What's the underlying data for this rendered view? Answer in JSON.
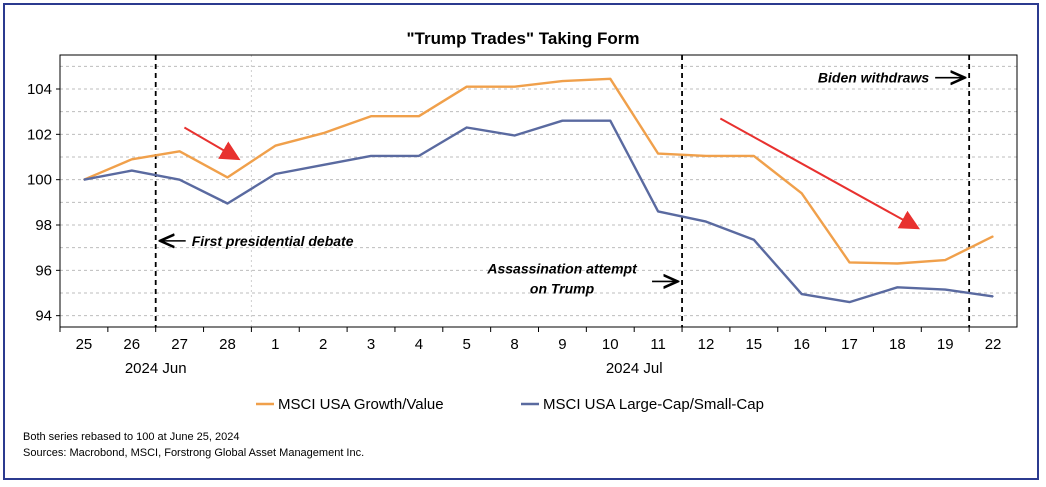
{
  "chart_data": {
    "type": "line",
    "title": "\"Trump Trades\" Taking Form",
    "xlabel": "",
    "ylabel": "",
    "ylim": [
      93.5,
      105.5
    ],
    "yticks": [
      94,
      96,
      98,
      100,
      102,
      104
    ],
    "grid": true,
    "legend_placement": "bottom",
    "categories": [
      "25",
      "26",
      "27",
      "28",
      "1",
      "2",
      "3",
      "4",
      "5",
      "8",
      "9",
      "10",
      "11",
      "12",
      "15",
      "16",
      "17",
      "18",
      "19",
      "22"
    ],
    "month_labels": [
      {
        "text": "2024 Jun",
        "at_index": 1.5
      },
      {
        "text": "2024 Jul",
        "at_index": 11.5
      }
    ],
    "series": [
      {
        "name": "MSCI USA Growth/Value",
        "color": "#f0a04b",
        "values": [
          100.0,
          100.9,
          101.25,
          100.1,
          101.5,
          102.05,
          102.8,
          102.8,
          104.1,
          104.1,
          104.35,
          104.45,
          101.15,
          101.05,
          101.05,
          99.4,
          96.35,
          96.3,
          96.45,
          97.5
        ]
      },
      {
        "name": "MSCI USA Large-Cap/Small-Cap",
        "color": "#5a6aa0",
        "values": [
          100.0,
          100.4,
          100.0,
          98.95,
          100.25,
          100.65,
          101.05,
          101.05,
          102.3,
          101.95,
          102.6,
          102.6,
          98.6,
          98.15,
          97.35,
          94.95,
          94.6,
          95.25,
          95.15,
          94.85
        ]
      }
    ],
    "annotations": [
      {
        "text": "First presidential debate",
        "arrow": "left",
        "at_index": 1.5,
        "y": 97.3
      },
      {
        "text": "Assassination attempt",
        "text2": "on Trump",
        "arrow": "right",
        "at_index": 12.5,
        "y": 95.6
      },
      {
        "text": "Biden withdraws",
        "arrow": "right",
        "at_index": 18.5,
        "y": 104.5
      }
    ],
    "event_lines_at_index": [
      1.5,
      12.5,
      18.5
    ],
    "trend_arrows": [
      {
        "from": [
          2.1,
          102.3
        ],
        "to": [
          3.2,
          100.95
        ],
        "color": "#e8312f"
      },
      {
        "from": [
          13.3,
          102.7
        ],
        "to": [
          17.4,
          97.9
        ],
        "color": "#e8312f"
      }
    ]
  },
  "footnotes": [
    "Both series rebased to 100 at June 25, 2024",
    "Sources: Macrobond, MSCI, Forstrong Global Asset Management Inc."
  ]
}
